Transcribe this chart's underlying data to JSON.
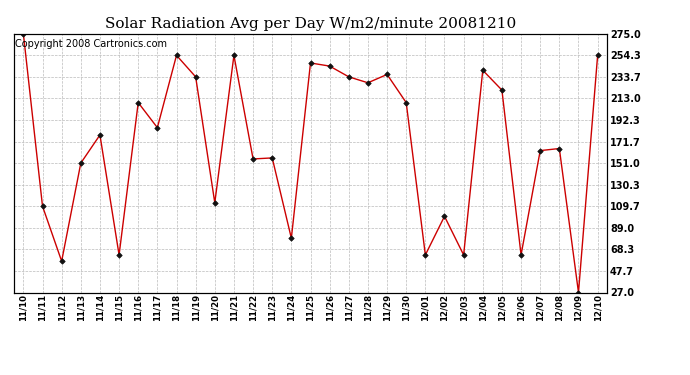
{
  "title": "Solar Radiation Avg per Day W/m2/minute 20081210",
  "copyright": "Copyright 2008 Cartronics.com",
  "labels": [
    "11/10",
    "11/11",
    "11/12",
    "11/13",
    "11/14",
    "11/15",
    "11/16",
    "11/17",
    "11/18",
    "11/19",
    "11/20",
    "11/21",
    "11/22",
    "11/23",
    "11/24",
    "11/25",
    "11/26",
    "11/27",
    "11/28",
    "11/29",
    "11/30",
    "12/01",
    "12/02",
    "12/03",
    "12/04",
    "12/05",
    "12/06",
    "12/07",
    "12/08",
    "12/09",
    "12/10"
  ],
  "values": [
    275.0,
    109.7,
    57.0,
    151.0,
    178.0,
    63.0,
    209.0,
    185.0,
    254.3,
    233.7,
    113.0,
    254.3,
    155.0,
    156.0,
    79.0,
    247.0,
    244.0,
    233.7,
    228.0,
    236.0,
    209.0,
    63.0,
    100.0,
    63.0,
    240.0,
    221.0,
    63.0,
    163.0,
    165.0,
    27.0,
    254.3
  ],
  "yticks": [
    27.0,
    47.7,
    68.3,
    89.0,
    109.7,
    130.3,
    151.0,
    171.7,
    192.3,
    213.0,
    233.7,
    254.3,
    275.0
  ],
  "ymin": 27.0,
  "ymax": 275.0,
  "line_color": "#cc0000",
  "marker_color": "#000000",
  "bg_color": "#ffffff",
  "grid_color": "#bbbbbb",
  "title_fontsize": 11,
  "copyright_fontsize": 7
}
